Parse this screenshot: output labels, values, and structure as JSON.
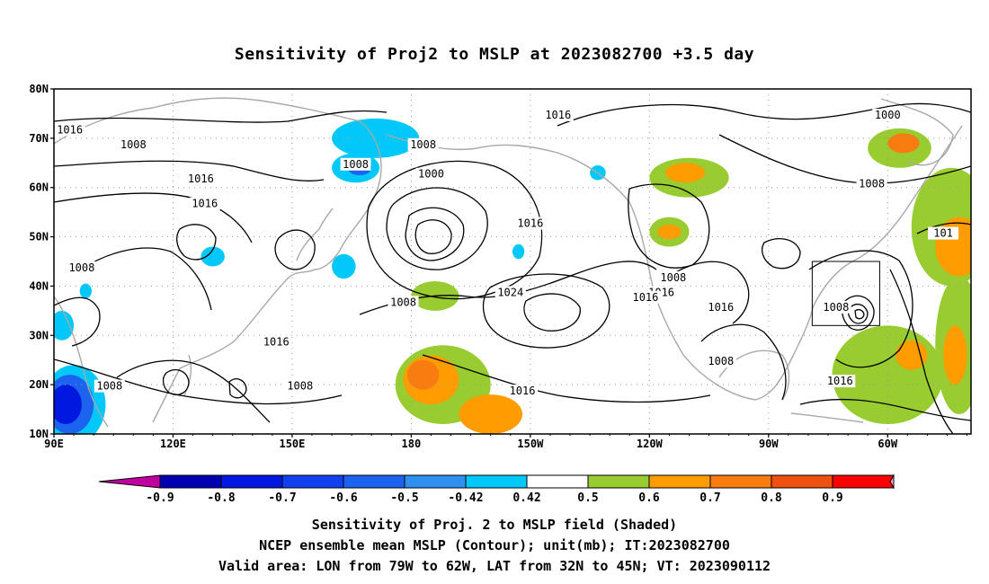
{
  "title": "Sensitivity of Proj2 to MSLP at 2023082700 +3.5 day",
  "map": {
    "lat_labels": [
      "80N",
      "70N",
      "60N",
      "50N",
      "40N",
      "30N",
      "20N",
      "10N"
    ],
    "lon_labels": [
      "90E",
      "120E",
      "150E",
      "180",
      "150W",
      "120W",
      "90W",
      "60W"
    ],
    "lat_range": [
      10,
      80
    ],
    "lon_range_east_deg": [
      90,
      321
    ],
    "valid_box": {
      "lon_w": 79,
      "lon_e": 62,
      "lat_s": 32,
      "lat_n": 45
    },
    "contour_labels": [
      {
        "text": "1016",
        "lon": 94,
        "lat": 71
      },
      {
        "text": "1008",
        "lon": 110,
        "lat": 68
      },
      {
        "text": "1008",
        "lon": 166,
        "lat": 64
      },
      {
        "text": "1008",
        "lon": 183,
        "lat": 68
      },
      {
        "text": "1016",
        "lon": 217,
        "lat": 74
      },
      {
        "text": "1000",
        "lon": 300,
        "lat": 74
      },
      {
        "text": "1000",
        "lon": 185,
        "lat": 62
      },
      {
        "text": "1016",
        "lon": 127,
        "lat": 61
      },
      {
        "text": "1016",
        "lon": 128,
        "lat": 56
      },
      {
        "text": "1008",
        "lon": 296,
        "lat": 60
      },
      {
        "text": "1016",
        "lon": 210,
        "lat": 52
      },
      {
        "text": "1008",
        "lon": 97,
        "lat": 43
      },
      {
        "text": "1008",
        "lon": 178,
        "lat": 36
      },
      {
        "text": "1008",
        "lon": 246,
        "lat": 41
      },
      {
        "text": "1016",
        "lon": 243,
        "lat": 38
      },
      {
        "text": "1016",
        "lon": 239,
        "lat": 37
      },
      {
        "text": "1016",
        "lon": 258,
        "lat": 35
      },
      {
        "text": "1008",
        "lon": 287,
        "lat": 35
      },
      {
        "text": "1024",
        "lon": 205,
        "lat": 38
      },
      {
        "text": "1016",
        "lon": 146,
        "lat": 28
      },
      {
        "text": "1008",
        "lon": 258,
        "lat": 24
      },
      {
        "text": "1008",
        "lon": 104,
        "lat": 19
      },
      {
        "text": "1008",
        "lon": 152,
        "lat": 19
      },
      {
        "text": "1016",
        "lon": 208,
        "lat": 18
      },
      {
        "text": "1016",
        "lon": 288,
        "lat": 20
      },
      {
        "text": "101",
        "lon": 314,
        "lat": 50
      }
    ],
    "shaded_regions": [
      {
        "level": -0.5,
        "lon": 171,
        "lat": 70,
        "rx": 11,
        "ry": 4
      },
      {
        "level": -0.5,
        "lon": 166,
        "lat": 64,
        "rx": 6,
        "ry": 3
      },
      {
        "level": -0.6,
        "lon": 167,
        "lat": 64,
        "rx": 3,
        "ry": 1.5
      },
      {
        "level": -0.5,
        "lon": 163,
        "lat": 44,
        "rx": 3,
        "ry": 2.5
      },
      {
        "level": -0.5,
        "lon": 130,
        "lat": 46,
        "rx": 3,
        "ry": 2
      },
      {
        "level": -0.5,
        "lon": 98,
        "lat": 39,
        "rx": 1.5,
        "ry": 1.5
      },
      {
        "level": -0.5,
        "lon": 92,
        "lat": 32,
        "rx": 3,
        "ry": 3
      },
      {
        "level": -0.5,
        "lon": 95,
        "lat": 16,
        "rx": 8,
        "ry": 8
      },
      {
        "level": -0.6,
        "lon": 94,
        "lat": 16,
        "rx": 6,
        "ry": 6
      },
      {
        "level": -0.7,
        "lon": 93,
        "lat": 16,
        "rx": 4,
        "ry": 4
      },
      {
        "level": -0.5,
        "lon": 227,
        "lat": 63,
        "rx": 2,
        "ry": 1.5
      },
      {
        "level": -0.5,
        "lon": 207,
        "lat": 47,
        "rx": 1.5,
        "ry": 1.5
      },
      {
        "level": 0.42,
        "lon": 186,
        "lat": 38,
        "rx": 6,
        "ry": 3
      },
      {
        "level": 0.5,
        "lon": 188,
        "lat": 20,
        "rx": 12,
        "ry": 8
      },
      {
        "level": 0.6,
        "lon": 185,
        "lat": 21,
        "rx": 7,
        "ry": 5
      },
      {
        "level": 0.7,
        "lon": 183,
        "lat": 22,
        "rx": 4,
        "ry": 3
      },
      {
        "level": 0.6,
        "lon": 200,
        "lat": 14,
        "rx": 8,
        "ry": 4
      },
      {
        "level": 0.5,
        "lon": 250,
        "lat": 62,
        "rx": 10,
        "ry": 4
      },
      {
        "level": 0.6,
        "lon": 249,
        "lat": 63,
        "rx": 5,
        "ry": 2
      },
      {
        "level": 0.5,
        "lon": 245,
        "lat": 51,
        "rx": 5,
        "ry": 3
      },
      {
        "level": 0.6,
        "lon": 245,
        "lat": 51,
        "rx": 3,
        "ry": 1.5
      },
      {
        "level": 0.5,
        "lon": 303,
        "lat": 68,
        "rx": 8,
        "ry": 4
      },
      {
        "level": 0.7,
        "lon": 304,
        "lat": 69,
        "rx": 4,
        "ry": 2
      },
      {
        "level": 0.5,
        "lon": 316,
        "lat": 52,
        "rx": 10,
        "ry": 12
      },
      {
        "level": 0.6,
        "lon": 318,
        "lat": 48,
        "rx": 6,
        "ry": 6
      },
      {
        "level": 0.5,
        "lon": 300,
        "lat": 22,
        "rx": 14,
        "ry": 10
      },
      {
        "level": 0.6,
        "lon": 306,
        "lat": 26,
        "rx": 4,
        "ry": 3
      },
      {
        "level": 0.5,
        "lon": 318,
        "lat": 28,
        "rx": 6,
        "ry": 14
      },
      {
        "level": 0.6,
        "lon": 317,
        "lat": 26,
        "rx": 3,
        "ry": 6
      }
    ]
  },
  "colorbar": {
    "levels": [
      "-0.9",
      "-0.8",
      "-0.7",
      "-0.6",
      "-0.5",
      "-0.42",
      "0.42",
      "0.5",
      "0.6",
      "0.7",
      "0.8",
      "0.9"
    ],
    "colors": [
      "#c000a0",
      "#0000b0",
      "#0018e0",
      "#1040f0",
      "#1c64f0",
      "#3090f0",
      "#00c8f8",
      "#ffffff",
      "#98cc30",
      "#ff9c00",
      "#f87c10",
      "#f05010",
      "#ff0000",
      "#f8a0c8"
    ]
  },
  "footer": {
    "line1": "Sensitivity of Proj. 2 to MSLP field (Shaded)",
    "line2": "NCEP ensemble mean MSLP (Contour); unit(mb); IT:2023082700",
    "line3": "Valid area: LON from 79W to 62W, LAT from 32N to 45N; VT: 2023090112"
  }
}
